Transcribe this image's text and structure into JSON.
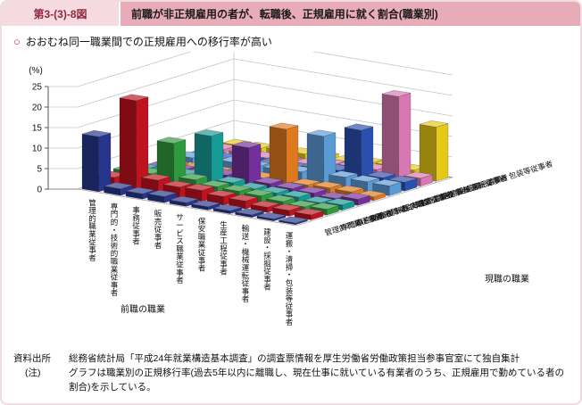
{
  "header": {
    "figure_no": "第3-(3)-8図",
    "title": "前職が非正規雇用の者が、転職後、正規雇用に就く割合(職業別)"
  },
  "lead": {
    "bullet": "○",
    "text": "おおむね同一職業間での正規雇用への移行率が高い"
  },
  "chart_data": {
    "type": "bar",
    "subtype": "3d-matrix-bar",
    "unit_label": "(%)",
    "ylim": [
      0,
      25
    ],
    "y_ticks": [
      0,
      5,
      10,
      15,
      20,
      25
    ],
    "x_axis_title": "前職の職業",
    "z_axis_title": "現職の職業",
    "x_categories": [
      "管理的職業従事者",
      "専門的・技術的職業従事者",
      "事務従事者",
      "販売従事者",
      "サービス職業従事者",
      "保安職業従事者",
      "生産工程従事者",
      "輸送・機械運転従事者",
      "建設・採掘従事者",
      "運搬・清掃・包装等従事者"
    ],
    "z_categories": [
      "管理的職業従事者",
      "専門的・技術的職業従事者",
      "事務従事者",
      "販売従事者",
      "サービス職業従事者",
      "保安職業従事者",
      "生産工程従事者",
      "輸送・機械運転従事者",
      "建設・採掘従事者",
      "運搬・清掃・包装等従事者"
    ],
    "series_colors": [
      "#27368c",
      "#c0121f",
      "#2f9a3d",
      "#169a96",
      "#73309c",
      "#e0791e",
      "#5b9bd5",
      "#2b4faf",
      "#d878b2",
      "#e5c818"
    ],
    "values": [
      [
        13.4,
        2.3,
        2.6,
        1.9,
        1.1,
        0.4,
        1.2,
        0.8,
        0.9,
        0.7
      ],
      [
        1.6,
        21.9,
        2.9,
        1.6,
        1.4,
        0.5,
        1.3,
        0.6,
        0.8,
        0.9
      ],
      [
        1.3,
        3.4,
        11.2,
        2.3,
        1.6,
        0.7,
        1.8,
        1.0,
        0.6,
        1.2
      ],
      [
        1.5,
        2.6,
        3.2,
        12.7,
        2.0,
        0.8,
        1.7,
        1.1,
        0.7,
        1.3
      ],
      [
        0.9,
        2.7,
        2.4,
        2.2,
        9.6,
        1.0,
        1.9,
        1.2,
        0.8,
        1.4
      ],
      [
        0.8,
        2.1,
        2.2,
        1.6,
        1.7,
        13.8,
        2.2,
        1.9,
        1.6,
        1.2
      ],
      [
        0.7,
        1.9,
        2.0,
        1.5,
        1.4,
        1.1,
        11.8,
        2.3,
        2.0,
        1.7
      ],
      [
        0.6,
        1.3,
        1.5,
        1.4,
        1.2,
        1.3,
        2.7,
        13.0,
        2.2,
        2.0
      ],
      [
        0.5,
        1.4,
        1.1,
        0.9,
        0.8,
        1.2,
        2.5,
        2.3,
        20.9,
        1.8
      ],
      [
        0.4,
        1.2,
        1.4,
        1.3,
        1.5,
        0.9,
        2.4,
        2.1,
        1.9,
        13.2
      ]
    ]
  },
  "notes": {
    "source_label": "資料出所",
    "source_text": "総務省統計局「平成24年就業構造基本調査」の調査票情報を厚生労働省労働政策担当参事官室にて独自集計",
    "note_label": "(注)",
    "note_text": "グラフは職業別の正規移行率(過去5年以内に離職し、現在仕事に就いている有業者のうち、正規雇用で勤めている者の割合)を示している。"
  }
}
